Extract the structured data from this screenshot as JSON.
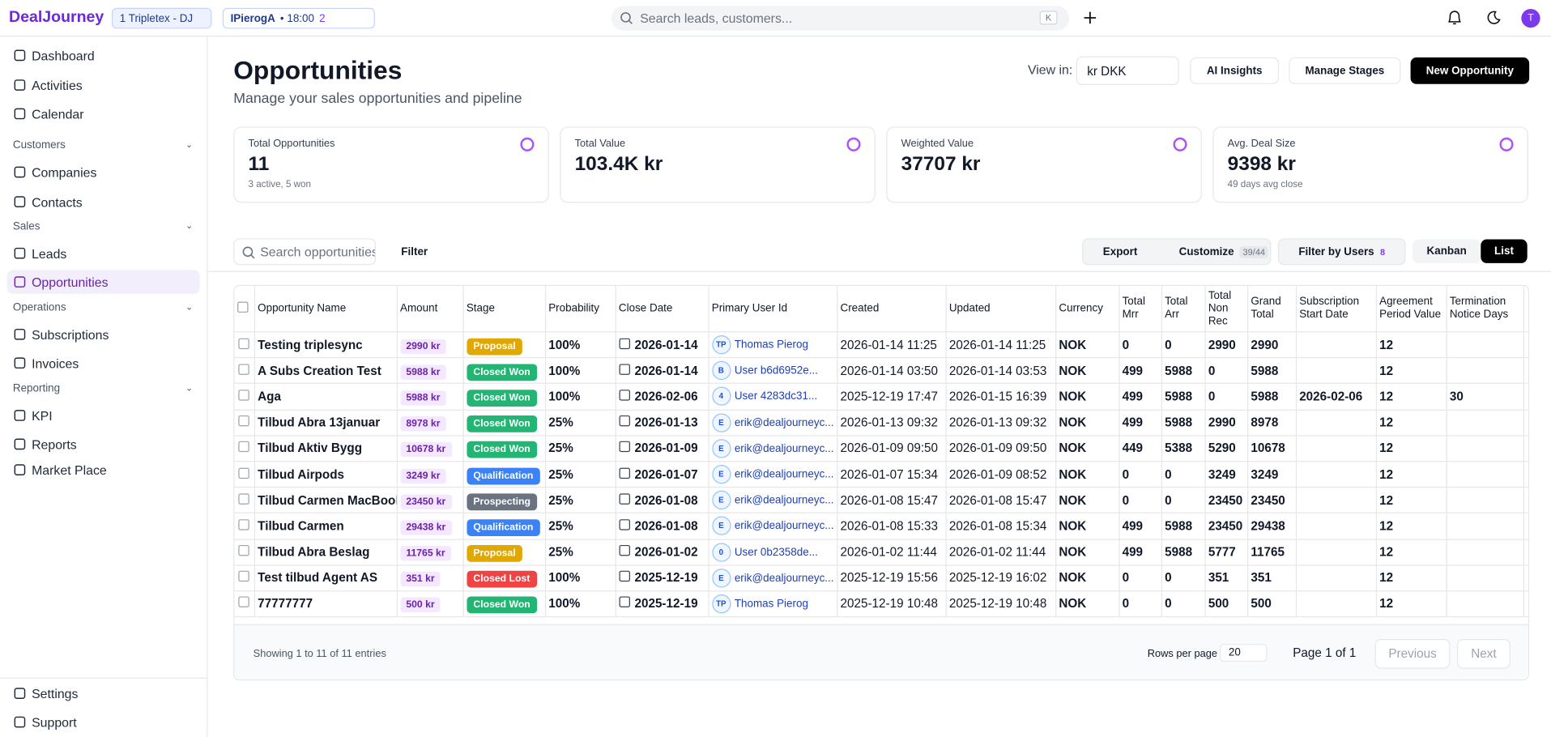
{
  "header": {
    "logo": "DealJourney",
    "workspace": "1 Tripletex - DJ",
    "meeting": "IPierogA",
    "meeting_time": "• 18:00",
    "meeting_people": "2",
    "search": "Search leads, customers...",
    "shortcut": "K",
    "avatar": "T"
  },
  "sidebar": {
    "top": [
      "Dashboard",
      "Activities",
      "Calendar"
    ],
    "groups": [
      {
        "title": "Customers",
        "items": [
          "Companies",
          "Contacts"
        ]
      },
      {
        "title": "Sales",
        "items": [
          "Leads",
          "Opportunities"
        ]
      },
      {
        "title": "Operations",
        "items": [
          "Subscriptions",
          "Invoices"
        ]
      },
      {
        "title": "Reporting",
        "items": [
          "KPI",
          "Reports",
          "Market Place"
        ]
      }
    ],
    "bottom": [
      "Settings",
      "Support"
    ],
    "active": "Opportunities"
  },
  "page": {
    "title": "Opportunities",
    "subtitle": "Manage your sales opportunities and pipeline",
    "view_in": "View in:",
    "currency": "kr DKK",
    "ai": "AI Insights",
    "stages": "Manage Stages",
    "new": "New Opportunity"
  },
  "stats": [
    {
      "label": "Total Opportunities",
      "value": "11",
      "sub": "3 active, 5 won"
    },
    {
      "label": "Total Value",
      "value": "103.4K kr"
    },
    {
      "label": "Weighted Value",
      "value": "37707 kr"
    },
    {
      "label": "Avg. Deal Size",
      "value": "9398 kr",
      "sub": "49 days avg close"
    }
  ],
  "toolbar": {
    "search": "Search opportunities",
    "filter": "Filter",
    "export": "Export",
    "customize": "Customize",
    "customize_count": "39/44",
    "filter_users": "Filter by Users",
    "filter_users_count": "8",
    "kanban": "Kanban",
    "list": "List"
  },
  "table": {
    "columns": [
      "Opportunity Name",
      "Amount",
      "Stage",
      "Probability",
      "Close Date",
      "Primary User Id",
      "Created",
      "Updated",
      "Currency",
      "Total Mrr",
      "Total Arr",
      "Total Non Rec",
      "Grand Total",
      "Subscription Start Date",
      "Agreement Period Value",
      "Termination Notice Days"
    ],
    "rows": [
      {
        "cells": [
          "Testing triplesync",
          "2990 kr",
          "Proposal",
          "100%",
          "2026-01-14",
          "Thomas Pierog",
          "2026-01-14 11:25",
          "2026-01-14 11:25",
          "NOK",
          0,
          0,
          2990,
          2990,
          null,
          12,
          null
        ],
        "user_initials": "TP",
        "stage_color": "#e0a800"
      },
      {
        "cells": [
          "A Subs Creation Test",
          "5988 kr",
          "Closed Won",
          "100%",
          "2026-01-14",
          "User b6d6952e...",
          "2026-01-14 03:50",
          "2026-01-14 03:53",
          "NOK",
          499,
          5988,
          0,
          5988,
          null,
          12,
          null
        ],
        "user_initials": "B",
        "stage_color": "#22b573"
      },
      {
        "cells": [
          "Aga",
          "5988 kr",
          "Closed Won",
          "100%",
          "2026-02-06",
          "User 4283dc31...",
          "2025-12-19 17:47",
          "2026-01-15 16:39",
          "NOK",
          499,
          5988,
          0,
          5988,
          "2026-02-06",
          12,
          30
        ],
        "user_initials": "4",
        "stage_color": "#22b573"
      },
      {
        "cells": [
          "Tilbud Abra 13januar",
          "8978 kr",
          "Closed Won",
          "25%",
          "2026-01-13",
          "erik@dealjourneyc...",
          "2026-01-13 09:32",
          "2026-01-13 09:32",
          "NOK",
          499,
          5988,
          2990,
          8978,
          null,
          12,
          null
        ],
        "user_initials": "E",
        "stage_color": "#22b573"
      },
      {
        "cells": [
          "Tilbud Aktiv Bygg",
          "10678 kr",
          "Closed Won",
          "25%",
          "2026-01-09",
          "erik@dealjourneyc...",
          "2026-01-09 09:50",
          "2026-01-09 09:50",
          "NOK",
          449,
          5388,
          5290,
          10678,
          null,
          12,
          null
        ],
        "user_initials": "E",
        "stage_color": "#22b573"
      },
      {
        "cells": [
          "Tilbud Airpods",
          "3249 kr",
          "Qualification",
          "25%",
          "2026-01-07",
          "erik@dealjourneyc...",
          "2026-01-07 15:34",
          "2026-01-09 08:52",
          "NOK",
          0,
          0,
          3249,
          3249,
          null,
          12,
          null
        ],
        "user_initials": "E",
        "stage_color": "#3b82f6"
      },
      {
        "cells": [
          "Tilbud Carmen MacBook",
          "23450 kr",
          "Prospecting",
          "25%",
          "2026-01-08",
          "erik@dealjourneyc...",
          "2026-01-08 15:47",
          "2026-01-08 15:47",
          "NOK",
          0,
          0,
          23450,
          23450,
          null,
          12,
          null
        ],
        "user_initials": "E",
        "stage_color": "#6b7280"
      },
      {
        "cells": [
          "Tilbud Carmen",
          "29438 kr",
          "Qualification",
          "25%",
          "2026-01-08",
          "erik@dealjourneyc...",
          "2026-01-08 15:33",
          "2026-01-08 15:34",
          "NOK",
          499,
          5988,
          23450,
          29438,
          null,
          12,
          null
        ],
        "user_initials": "E",
        "stage_color": "#3b82f6"
      },
      {
        "cells": [
          "Tilbud Abra Beslag",
          "11765 kr",
          "Proposal",
          "25%",
          "2026-01-02",
          "User 0b2358de...",
          "2026-01-02 11:44",
          "2026-01-02 11:44",
          "NOK",
          499,
          5988,
          5777,
          11765,
          null,
          12,
          null
        ],
        "user_initials": "0",
        "stage_color": "#e0a800"
      },
      {
        "cells": [
          "Test tilbud Agent AS",
          "351 kr",
          "Closed Lost",
          "100%",
          "2025-12-19",
          "erik@dealjourneyc...",
          "2025-12-19 15:56",
          "2025-12-19 16:02",
          "NOK",
          0,
          0,
          351,
          351,
          null,
          12,
          null
        ],
        "user_initials": "E",
        "stage_color": "#ef4444"
      },
      {
        "cells": [
          "77777777",
          "500 kr",
          "Closed Won",
          "100%",
          "2025-12-19",
          "Thomas Pierog",
          "2025-12-19 10:48",
          "2025-12-19 10:48",
          "NOK",
          0,
          0,
          500,
          500,
          null,
          12,
          null
        ],
        "user_initials": "TP",
        "stage_color": "#22b573"
      }
    ]
  },
  "footer": {
    "showing": "Showing 1 to 11 of 11 entries",
    "rows_per_page": "Rows per page",
    "rows_value": "20",
    "page": "Page 1 of 1",
    "previous": "Previous",
    "next": "Next"
  }
}
